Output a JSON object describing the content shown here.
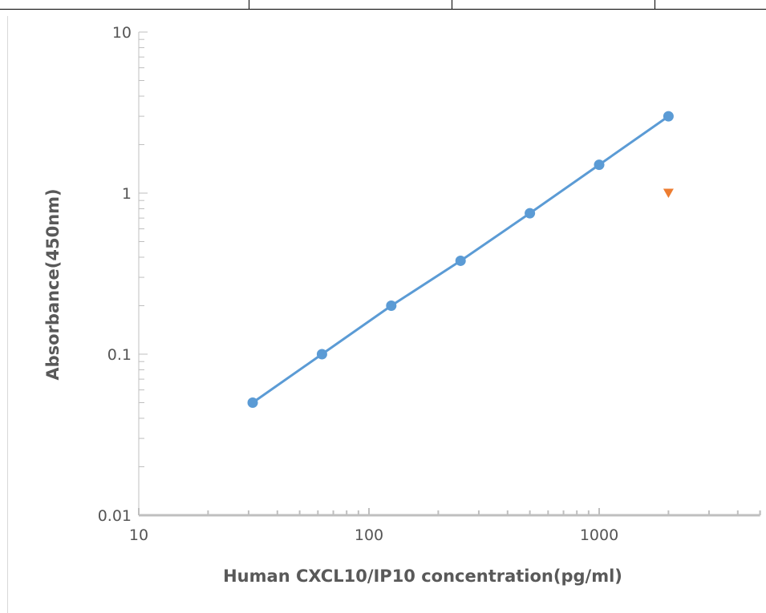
{
  "chart_data": {
    "type": "line",
    "title": "",
    "xlabel": "Human CXCL10/IP10  concentration(pg/ml)",
    "ylabel": "Absorbance(450nm)",
    "x_scale": "log",
    "y_scale": "log",
    "xlim": [
      10,
      5000
    ],
    "ylim": [
      0.01,
      10
    ],
    "x_ticks": [
      {
        "value": 10,
        "label": "10"
      },
      {
        "value": 100,
        "label": "100"
      },
      {
        "value": 1000,
        "label": "1000"
      }
    ],
    "y_ticks": [
      {
        "value": 10,
        "label": "10"
      },
      {
        "value": 1,
        "label": "1"
      },
      {
        "value": 0.1,
        "label": "0.1"
      },
      {
        "value": 0.01,
        "label": "0.01"
      }
    ],
    "grid": false,
    "legend": "none",
    "series": [
      {
        "kind": "line-with-markers",
        "marker": "circle",
        "color": "#5b9bd5",
        "x": [
          31.25,
          62.5,
          125,
          250,
          500,
          1000,
          2000
        ],
        "y": [
          0.05,
          0.1,
          0.2,
          0.38,
          0.75,
          1.5,
          3.0
        ]
      },
      {
        "kind": "markers",
        "marker": "triangle-down",
        "color": "#ed7d31",
        "x": [
          2000
        ],
        "y": [
          1.0
        ]
      }
    ],
    "axis_color": "#bfbfbf"
  }
}
